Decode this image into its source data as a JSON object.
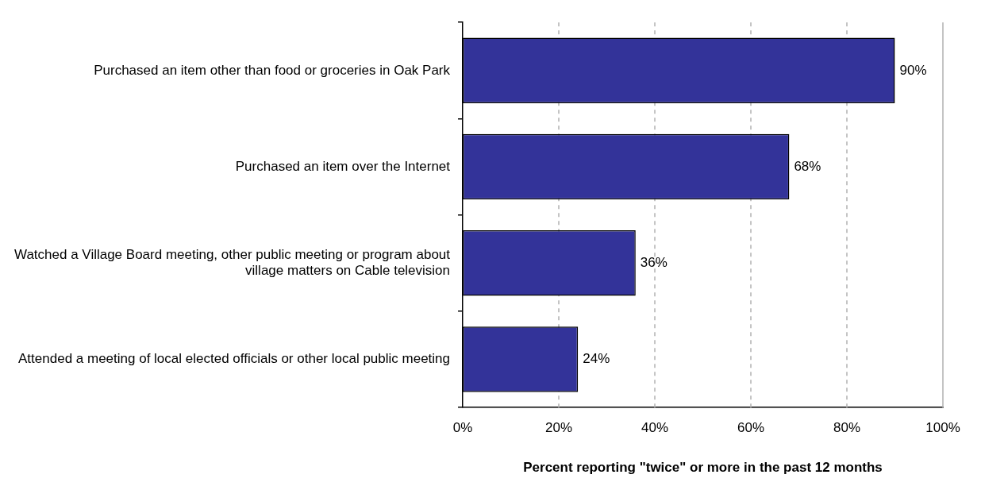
{
  "chart_data": {
    "type": "bar",
    "orientation": "horizontal",
    "xlabel": "Percent reporting \"twice\" or more in the past 12 months",
    "categories": [
      "Purchased an item other than food or groceries in Oak Park",
      "Purchased an item over the Internet",
      "Watched a Village Board meeting, other public meeting or program about village matters on Cable television",
      "Attended a meeting of local elected officials or other local public meeting"
    ],
    "values": [
      90,
      68,
      36,
      24
    ],
    "value_labels": [
      "90%",
      "68%",
      "36%",
      "24%"
    ],
    "color": "#333399",
    "xlim": [
      0,
      100
    ],
    "xticks": [
      {
        "value": 0,
        "label": "0%"
      },
      {
        "value": 20,
        "label": "20%"
      },
      {
        "value": 40,
        "label": "40%"
      },
      {
        "value": 60,
        "label": "60%"
      },
      {
        "value": 80,
        "label": "80%"
      },
      {
        "value": 100,
        "label": "100%"
      }
    ],
    "grid": "x",
    "legend": false
  }
}
